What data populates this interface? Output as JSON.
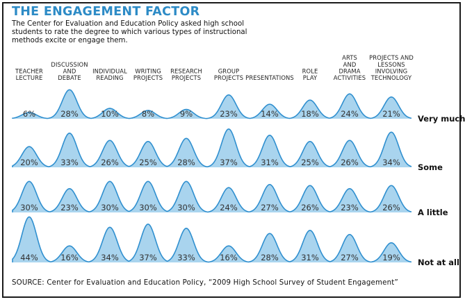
{
  "title": "THE ENGAGEMENT FACTOR",
  "subtitle": "The Center for Evaluation and Education Policy asked high school students to rate the degree to which various types of instructional methods excite or engage them.",
  "source": "SOURCE: Center for Evaluation and Education Policy, “2009 High School Survey of Student Engagement”",
  "colors": {
    "fill": "#a9d4ee",
    "stroke": "#2f8fcf",
    "title": "#2d8bc6"
  },
  "chart_data": {
    "type": "area",
    "categories": [
      "TEACHER LECTURE",
      "DISCUSSION AND DEBATE",
      "INDIVIDUAL READING",
      "WRITING PROJECTS",
      "RESEARCH PROJECTS",
      "GROUP PROJECTS",
      "PRESENTATIONS",
      "ROLE PLAY",
      "ARTS AND DRAMA ACTIVITIES",
      "PROJECTS AND LESSONS INVOLVING TECHNOLOGY"
    ],
    "category_lines": [
      [
        "TEACHER",
        "LECTURE"
      ],
      [
        "DISCUSSION",
        "AND",
        "DEBATE"
      ],
      [
        "INDIVIDUAL",
        "READING"
      ],
      [
        "WRITING",
        "PROJECTS"
      ],
      [
        "RESEARCH",
        "PROJECTS"
      ],
      [
        "GROUP",
        "PROJECTS"
      ],
      [
        "PRESENTATIONS"
      ],
      [
        "ROLE",
        "PLAY"
      ],
      [
        "ARTS",
        "AND",
        "DRAMA",
        "ACTIVITIES"
      ],
      [
        "PROJECTS AND",
        "LESSONS",
        "INVOLVING",
        "TECHNOLOGY"
      ]
    ],
    "series": [
      {
        "name": "Very much",
        "values": [
          6,
          28,
          10,
          8,
          9,
          23,
          14,
          18,
          24,
          21
        ]
      },
      {
        "name": "Some",
        "values": [
          20,
          33,
          26,
          25,
          28,
          37,
          31,
          25,
          26,
          34
        ]
      },
      {
        "name": "A little",
        "values": [
          30,
          23,
          30,
          30,
          30,
          24,
          27,
          26,
          23,
          26
        ]
      },
      {
        "name": "Not at all",
        "values": [
          44,
          16,
          34,
          37,
          33,
          16,
          28,
          31,
          27,
          19
        ]
      }
    ],
    "unit": "%"
  }
}
